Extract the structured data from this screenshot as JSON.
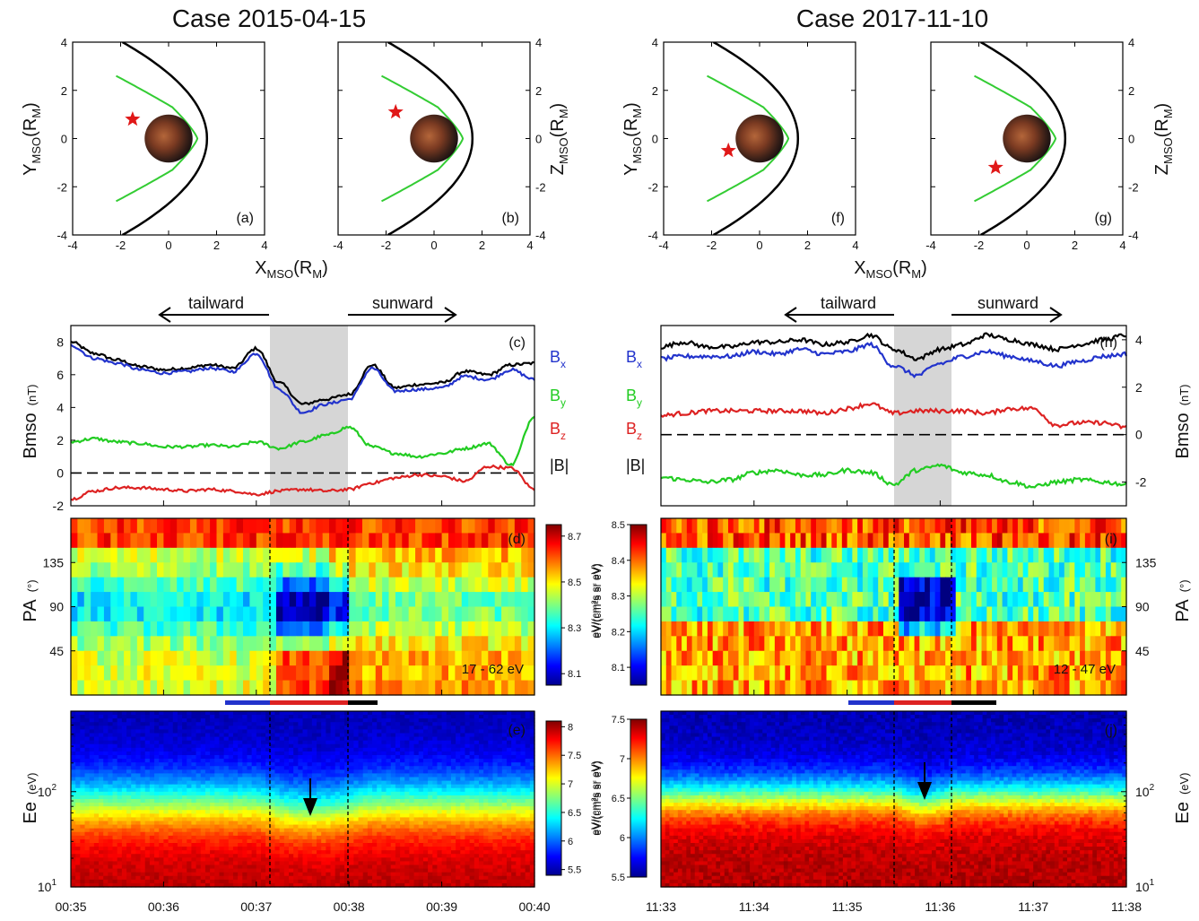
{
  "titles": {
    "left": "Case 2015-04-15",
    "right": "Case 2017-11-10"
  },
  "labels": {
    "orbit_xlabel_main": "X",
    "orbit_xlabel_sub": "MSO",
    "orbit_xlabel_unit": "(R",
    "orbit_xlabel_unit_sub": "M",
    "orbit_xlabel_close": ")",
    "ylabel_Y": "Y",
    "ylabel_Z": "Z",
    "ylabel_sub": "MSO",
    "ylabel_unit": "(R",
    "ylabel_unit_sub": "M",
    "ylabel_close": ")",
    "tailward": "tailward",
    "sunward": "sunward",
    "bmso": "Bmso",
    "bmso_unit": "(nT)",
    "pa": "PA",
    "pa_unit": "(°)",
    "ee": "Ee",
    "ee_unit": "(eV)",
    "bx": "B",
    "bx_sub": "x",
    "by": "B",
    "by_sub": "y",
    "bz": "B",
    "bz_sub": "z",
    "babs": "|B|",
    "cb_pa_left": "eV/(cm²s sr eV)",
    "cb_pa_right": "eV/(cm²s sr eV)",
    "cb_ee_left": "eV/(cm²s sr eV)",
    "cb_ee_right": "eV/(cm²s sr eV)",
    "energy_left": "17 - 62 eV",
    "energy_right": "12 - 47 eV",
    "ee_tick_100": "10",
    "ee_tick_100_exp": "2",
    "ee_tick_10": "10",
    "ee_tick_10_exp": "1"
  },
  "panel_letters": {
    "a": "(a)",
    "b": "(b)",
    "c": "(c)",
    "d": "(d)",
    "e": "(e)",
    "f": "(f)",
    "g": "(g)",
    "h": "(h)",
    "i": "(i)",
    "j": "(j)"
  },
  "orbit_ticks": [
    "-4",
    "-2",
    "0",
    "2",
    "4"
  ],
  "orbit_yticks": [
    "4",
    "2",
    "0",
    "-2",
    "-4"
  ],
  "bmso_left_ticks": [
    "8",
    "6",
    "4",
    "2",
    "0",
    "-2"
  ],
  "bmso_right_ticks": [
    "4",
    "2",
    "0",
    "-2"
  ],
  "pa_ticks": [
    "135",
    "90",
    "45"
  ],
  "cb_pa_left_ticks": [
    "8.7",
    "8.5",
    "8.3",
    "8.1"
  ],
  "cb_ee_left_ticks": [
    "8",
    "7.5",
    "7",
    "6.5",
    "6",
    "5.5"
  ],
  "cb_pa_right_ticks": [
    "8.5",
    "8.4",
    "8.3",
    "8.2",
    "8.1"
  ],
  "cb_ee_right_ticks": [
    "7.5",
    "7",
    "6.5",
    "6",
    "5.5"
  ],
  "time_left": [
    "00:35",
    "00:36",
    "00:37",
    "00:38",
    "00:39",
    "00:40"
  ],
  "time_right": [
    "11:33",
    "11:34",
    "11:35",
    "11:36",
    "11:37",
    "11:38"
  ],
  "colors": {
    "bx": "#2233cc",
    "by": "#22cc22",
    "bz": "#dd2222",
    "babs": "#000000",
    "shade": "#d6d6d6",
    "star": "#e01818",
    "bow_shock": "#000000",
    "mpb": "#33cc33"
  },
  "chart_data": [
    {
      "panel": "a",
      "type": "scatter",
      "xlabel": "XMSO(RM)",
      "ylabel": "YMSO(RM)",
      "xlim": [
        -4,
        4
      ],
      "ylim": [
        -4,
        4
      ],
      "series": [
        {
          "values": [
            [
              -1.5,
              0.8
            ]
          ]
        }
      ]
    },
    {
      "panel": "b",
      "type": "scatter",
      "ylabel": "ZMSO(RM)",
      "xlim": [
        -4,
        4
      ],
      "ylim": [
        -4,
        4
      ],
      "series": [
        {
          "values": [
            [
              -1.6,
              1.1
            ]
          ]
        }
      ]
    },
    {
      "panel": "f",
      "type": "scatter",
      "xlabel": "XMSO(RM)",
      "ylabel": "YMSO(RM)",
      "xlim": [
        -4,
        4
      ],
      "ylim": [
        -4,
        4
      ],
      "series": [
        {
          "values": [
            [
              -1.3,
              -0.5
            ]
          ]
        }
      ]
    },
    {
      "panel": "g",
      "type": "scatter",
      "ylabel": "ZMSO(RM)",
      "xlim": [
        -4,
        4
      ],
      "ylim": [
        -4,
        4
      ],
      "series": [
        {
          "values": [
            [
              -1.3,
              -1.2
            ]
          ]
        }
      ]
    },
    {
      "panel": "c",
      "type": "line",
      "ylabel": "Bmso (nT)",
      "ylim": [
        -2,
        9
      ],
      "x": [
        0,
        0.25,
        0.5,
        0.75,
        1,
        1.25,
        1.5,
        1.75,
        2,
        2.25,
        2.5,
        2.75,
        3,
        3.25,
        3.5,
        3.75,
        4,
        4.25,
        4.5,
        4.75,
        5
      ],
      "series": [
        {
          "name": "|B|",
          "values": [
            8.0,
            7.3,
            6.9,
            6.5,
            6.3,
            6.4,
            6.6,
            6.4,
            7.6,
            5.5,
            4.2,
            4.5,
            4.8,
            6.6,
            5.2,
            5.4,
            5.5,
            6.2,
            6.0,
            6.6,
            6.7
          ]
        },
        {
          "name": "Bx",
          "values": [
            7.8,
            7.0,
            6.7,
            6.3,
            6.1,
            6.2,
            6.4,
            6.2,
            7.3,
            5.1,
            3.7,
            4.2,
            4.5,
            6.4,
            5.0,
            5.1,
            5.2,
            5.9,
            5.7,
            6.3,
            5.7
          ]
        },
        {
          "name": "By",
          "values": [
            1.9,
            2.1,
            1.9,
            1.8,
            1.6,
            1.6,
            1.7,
            1.6,
            1.9,
            1.5,
            1.9,
            2.3,
            2.8,
            1.6,
            1.2,
            1.0,
            1.2,
            1.5,
            1.8,
            0.5,
            3.5
          ]
        },
        {
          "name": "Bz",
          "values": [
            -1.6,
            -1.1,
            -0.9,
            -0.9,
            -1.0,
            -1.1,
            -1.0,
            -1.1,
            -1.3,
            -1.1,
            -1.0,
            -1.1,
            -1.0,
            -0.6,
            -0.3,
            -0.1,
            -0.2,
            -0.5,
            0.4,
            0.3,
            -1.0
          ]
        }
      ]
    },
    {
      "panel": "h",
      "type": "line",
      "ylabel": "Bmso (nT)",
      "ylim": [
        -3,
        4.6
      ],
      "x": [
        0,
        0.25,
        0.5,
        0.75,
        1,
        1.25,
        1.5,
        1.75,
        2,
        2.25,
        2.5,
        2.75,
        3,
        3.25,
        3.5,
        3.75,
        4,
        4.25,
        4.5,
        4.75,
        5
      ],
      "series": [
        {
          "name": "|B|",
          "values": [
            3.7,
            3.9,
            3.7,
            3.7,
            3.9,
            3.9,
            4.0,
            3.8,
            3.9,
            4.2,
            3.6,
            3.2,
            3.6,
            3.8,
            4.2,
            4.0,
            3.8,
            3.6,
            3.8,
            4.0,
            4.2
          ]
        },
        {
          "name": "Bx",
          "values": [
            3.2,
            3.3,
            3.3,
            3.3,
            3.5,
            3.4,
            3.6,
            3.4,
            3.5,
            3.8,
            2.9,
            2.5,
            3.0,
            3.3,
            3.5,
            3.3,
            3.1,
            2.9,
            3.1,
            3.3,
            3.4
          ]
        },
        {
          "name": "Bz",
          "values": [
            0.8,
            0.9,
            1.0,
            1.0,
            1.0,
            1.0,
            1.0,
            0.9,
            1.1,
            1.3,
            0.9,
            1.0,
            1.0,
            1.0,
            0.9,
            1.1,
            1.1,
            0.4,
            0.5,
            0.5,
            0.3
          ]
        },
        {
          "name": "By",
          "values": [
            -1.8,
            -1.9,
            -2.0,
            -1.9,
            -1.6,
            -1.5,
            -1.7,
            -1.7,
            -1.5,
            -1.6,
            -2.1,
            -1.5,
            -1.3,
            -1.6,
            -1.7,
            -2.0,
            -2.2,
            -2.0,
            -1.9,
            -2.0,
            -2.1
          ]
        }
      ]
    },
    {
      "panel": "d",
      "type": "heatmap",
      "ylabel": "PA (°)",
      "ylim": [
        0,
        180
      ],
      "colorbar_range": [
        8.05,
        8.75
      ]
    },
    {
      "panel": "i",
      "type": "heatmap",
      "ylabel": "PA (°)",
      "ylim": [
        0,
        180
      ],
      "colorbar_range": [
        8.05,
        8.5
      ]
    },
    {
      "panel": "e",
      "type": "heatmap",
      "ylabel": "Ee (eV)",
      "ylim": [
        10,
        700
      ],
      "colorbar_range": [
        5.4,
        8.1
      ]
    },
    {
      "panel": "j",
      "type": "heatmap",
      "ylabel": "Ee (eV)",
      "ylim": [
        10,
        700
      ],
      "colorbar_range": [
        5.5,
        7.5
      ]
    }
  ]
}
